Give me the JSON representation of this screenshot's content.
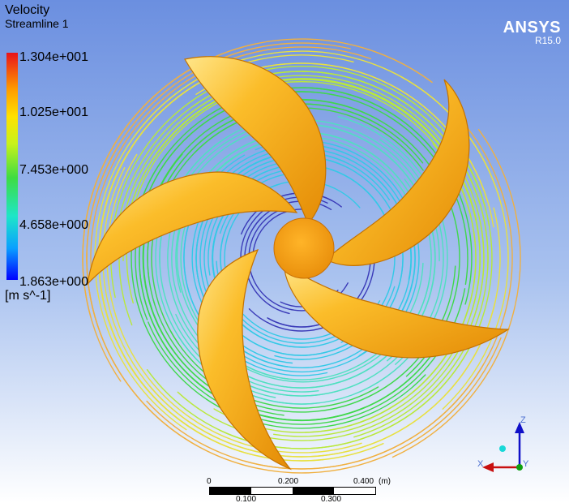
{
  "legend": {
    "title": "Velocity",
    "subtitle": "Streamline 1",
    "ticks": [
      "1.304e+001",
      "1.025e+001",
      "7.453e+000",
      "4.658e+000",
      "1.863e+000"
    ],
    "units": "[m s^-1]"
  },
  "brand": {
    "name": "ANSYS",
    "version": "R15.0"
  },
  "scale_bar": {
    "top_labels": [
      "0",
      "0.200",
      "0.400"
    ],
    "unit": "(m)",
    "bottom_labels": [
      "0.100",
      "0.300"
    ]
  },
  "axes": {
    "z": "Z",
    "x": "X",
    "y": "Y"
  },
  "colors": {
    "blade": "#f5a00e",
    "blade_highlight": "#ffe060",
    "hub": "#f59a10",
    "background_top": "#6b8fe0",
    "axis_z": "#1010c8",
    "axis_x": "#c81010",
    "axis_y": "#10a010"
  }
}
